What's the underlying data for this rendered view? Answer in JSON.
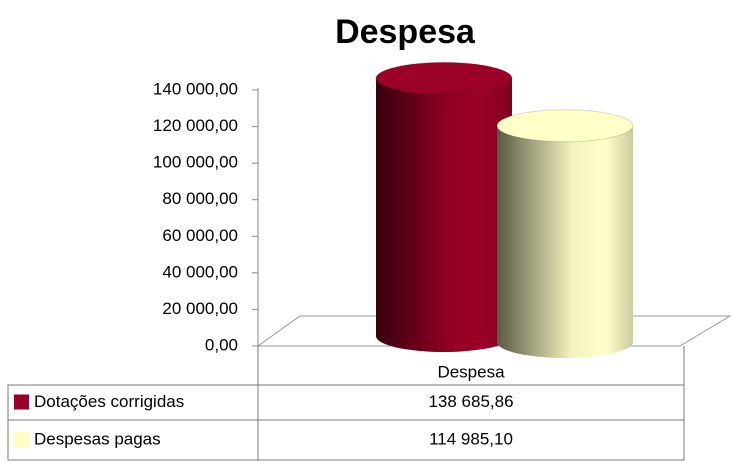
{
  "chart_data": {
    "type": "cylinder_bar",
    "title": "Despesa",
    "categories": [
      "Despesa"
    ],
    "series": [
      {
        "name": "Dotações corrigidas",
        "color": "#9b0026",
        "values": [
          138685.86
        ],
        "value_labels": [
          "138 685,86"
        ]
      },
      {
        "name": "Despesas pagas",
        "color": "#ffffc8",
        "values": [
          114985.1
        ],
        "value_labels": [
          "114 985,10"
        ]
      }
    ],
    "ylim": [
      0,
      140000
    ],
    "yticks": [
      {
        "value": 0,
        "label": "0,00"
      },
      {
        "value": 20000,
        "label": "20 000,00"
      },
      {
        "value": 40000,
        "label": "40 000,00"
      },
      {
        "value": 60000,
        "label": "60 000,00"
      },
      {
        "value": 80000,
        "label": "80 000,00"
      },
      {
        "value": 100000,
        "label": "100 000,00"
      },
      {
        "value": 120000,
        "label": "120 000,00"
      },
      {
        "value": 140000,
        "label": "140 000,00"
      }
    ],
    "data_table": true
  }
}
